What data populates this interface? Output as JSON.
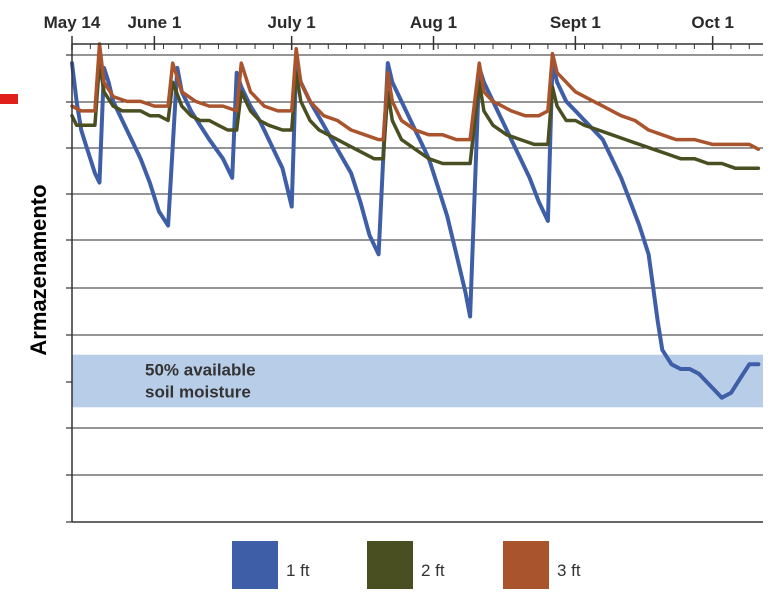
{
  "chart_data": {
    "type": "line",
    "title": "",
    "xlabel": "",
    "ylabel": "Armazenamento",
    "x_tick_labels": [
      "May 14",
      "June 1",
      "July 1",
      "Aug 1",
      "Sept 1",
      "Oct 1"
    ],
    "x_tick_days": [
      0,
      18,
      48,
      79,
      110,
      140
    ],
    "x_range_days": [
      0,
      151
    ],
    "y_range": [
      0,
      100
    ],
    "grid": true,
    "legend_position": "bottom",
    "band": {
      "label_lines": [
        "50% available",
        "soil moisture"
      ],
      "y_range": [
        24,
        35
      ],
      "color": "#b8cde8"
    },
    "series": [
      {
        "name": "1 ft",
        "color": "#3f5ea8",
        "points": [
          [
            0,
            96
          ],
          [
            1,
            88
          ],
          [
            2,
            82
          ],
          [
            3,
            79
          ],
          [
            4,
            76
          ],
          [
            5,
            73
          ],
          [
            6,
            71
          ],
          [
            7,
            95
          ],
          [
            8,
            92
          ],
          [
            9,
            88
          ],
          [
            11,
            84
          ],
          [
            13,
            80
          ],
          [
            15,
            76
          ],
          [
            17,
            71
          ],
          [
            19,
            65
          ],
          [
            21,
            62
          ],
          [
            23,
            95
          ],
          [
            24,
            90
          ],
          [
            26,
            86
          ],
          [
            28,
            83
          ],
          [
            30,
            80
          ],
          [
            33,
            76
          ],
          [
            35,
            72
          ],
          [
            36,
            94
          ],
          [
            37,
            91
          ],
          [
            39,
            87
          ],
          [
            41,
            84
          ],
          [
            43,
            80
          ],
          [
            46,
            74
          ],
          [
            48,
            66
          ],
          [
            49,
            96
          ],
          [
            50,
            92
          ],
          [
            52,
            88
          ],
          [
            55,
            83
          ],
          [
            58,
            78
          ],
          [
            61,
            73
          ],
          [
            63,
            67
          ],
          [
            65,
            60
          ],
          [
            67,
            56
          ],
          [
            69,
            96
          ],
          [
            70,
            92
          ],
          [
            72,
            88
          ],
          [
            74,
            84
          ],
          [
            76,
            80
          ],
          [
            78,
            76
          ],
          [
            80,
            70
          ],
          [
            82,
            64
          ],
          [
            84,
            56
          ],
          [
            86,
            48
          ],
          [
            87,
            43
          ],
          [
            89,
            95
          ],
          [
            90,
            92
          ],
          [
            92,
            88
          ],
          [
            94,
            84
          ],
          [
            96,
            80
          ],
          [
            98,
            76
          ],
          [
            100,
            72
          ],
          [
            102,
            67
          ],
          [
            104,
            63
          ],
          [
            105,
            96
          ],
          [
            106,
            92
          ],
          [
            108,
            88
          ],
          [
            110,
            86
          ],
          [
            112,
            84
          ],
          [
            114,
            82
          ],
          [
            116,
            80
          ],
          [
            118,
            76
          ],
          [
            120,
            72
          ],
          [
            122,
            67
          ],
          [
            124,
            62
          ],
          [
            126,
            56
          ],
          [
            127,
            49
          ],
          [
            128,
            42
          ],
          [
            129,
            36
          ],
          [
            131,
            33
          ],
          [
            133,
            32
          ],
          [
            135,
            32
          ],
          [
            137,
            31
          ],
          [
            139,
            29
          ],
          [
            141,
            27
          ],
          [
            142,
            26
          ],
          [
            144,
            27
          ],
          [
            146,
            30
          ],
          [
            148,
            33
          ],
          [
            150,
            33
          ]
        ]
      },
      {
        "name": "2 ft",
        "color": "#4a4f22",
        "points": [
          [
            0,
            85
          ],
          [
            1,
            83
          ],
          [
            3,
            83
          ],
          [
            5,
            83
          ],
          [
            6,
            96
          ],
          [
            7,
            90
          ],
          [
            9,
            87
          ],
          [
            11,
            86
          ],
          [
            13,
            86
          ],
          [
            15,
            86
          ],
          [
            17,
            85
          ],
          [
            19,
            85
          ],
          [
            21,
            84
          ],
          [
            22,
            92
          ],
          [
            24,
            87
          ],
          [
            26,
            85
          ],
          [
            28,
            84
          ],
          [
            30,
            84
          ],
          [
            32,
            83
          ],
          [
            34,
            82
          ],
          [
            36,
            82
          ],
          [
            37,
            90
          ],
          [
            39,
            86
          ],
          [
            41,
            84
          ],
          [
            43,
            83
          ],
          [
            46,
            82
          ],
          [
            48,
            82
          ],
          [
            49,
            94
          ],
          [
            50,
            88
          ],
          [
            52,
            84
          ],
          [
            54,
            82
          ],
          [
            56,
            81
          ],
          [
            58,
            80
          ],
          [
            60,
            79
          ],
          [
            62,
            78
          ],
          [
            64,
            77
          ],
          [
            66,
            76
          ],
          [
            68,
            76
          ],
          [
            69,
            90
          ],
          [
            70,
            84
          ],
          [
            72,
            80
          ],
          [
            75,
            78
          ],
          [
            78,
            76
          ],
          [
            81,
            75
          ],
          [
            84,
            75
          ],
          [
            86,
            75
          ],
          [
            87,
            75
          ],
          [
            89,
            92
          ],
          [
            90,
            86
          ],
          [
            92,
            83
          ],
          [
            95,
            81
          ],
          [
            98,
            80
          ],
          [
            101,
            79
          ],
          [
            104,
            79
          ],
          [
            105,
            91
          ],
          [
            106,
            87
          ],
          [
            108,
            84
          ],
          [
            110,
            84
          ],
          [
            112,
            83
          ],
          [
            115,
            82
          ],
          [
            118,
            81
          ],
          [
            121,
            80
          ],
          [
            124,
            79
          ],
          [
            127,
            78
          ],
          [
            130,
            77
          ],
          [
            133,
            76
          ],
          [
            136,
            76
          ],
          [
            139,
            75
          ],
          [
            142,
            75
          ],
          [
            145,
            74
          ],
          [
            148,
            74
          ],
          [
            150,
            74
          ]
        ]
      },
      {
        "name": "3 ft",
        "color": "#a9542c",
        "points": [
          [
            0,
            87
          ],
          [
            2,
            86
          ],
          [
            4,
            86
          ],
          [
            5,
            86
          ],
          [
            6,
            100
          ],
          [
            7,
            92
          ],
          [
            9,
            89
          ],
          [
            12,
            88
          ],
          [
            15,
            88
          ],
          [
            18,
            87
          ],
          [
            21,
            87
          ],
          [
            22,
            96
          ],
          [
            24,
            90
          ],
          [
            27,
            88
          ],
          [
            30,
            87
          ],
          [
            33,
            87
          ],
          [
            36,
            86
          ],
          [
            37,
            96
          ],
          [
            39,
            90
          ],
          [
            42,
            87
          ],
          [
            45,
            86
          ],
          [
            48,
            86
          ],
          [
            49,
            99
          ],
          [
            50,
            92
          ],
          [
            52,
            88
          ],
          [
            55,
            85
          ],
          [
            58,
            84
          ],
          [
            61,
            82
          ],
          [
            64,
            81
          ],
          [
            67,
            80
          ],
          [
            68,
            80
          ],
          [
            69,
            94
          ],
          [
            70,
            88
          ],
          [
            72,
            84
          ],
          [
            75,
            82
          ],
          [
            78,
            81
          ],
          [
            81,
            81
          ],
          [
            84,
            80
          ],
          [
            87,
            80
          ],
          [
            89,
            96
          ],
          [
            90,
            90
          ],
          [
            92,
            88
          ],
          [
            94,
            87
          ],
          [
            96,
            86
          ],
          [
            99,
            85
          ],
          [
            102,
            85
          ],
          [
            104,
            86
          ],
          [
            105,
            98
          ],
          [
            106,
            94
          ],
          [
            108,
            92
          ],
          [
            110,
            90
          ],
          [
            112,
            89
          ],
          [
            114,
            88
          ],
          [
            116,
            87
          ],
          [
            118,
            86
          ],
          [
            120,
            85
          ],
          [
            123,
            84
          ],
          [
            126,
            82
          ],
          [
            129,
            81
          ],
          [
            132,
            80
          ],
          [
            136,
            80
          ],
          [
            140,
            79
          ],
          [
            144,
            79
          ],
          [
            148,
            79
          ],
          [
            150,
            78
          ]
        ]
      }
    ]
  }
}
